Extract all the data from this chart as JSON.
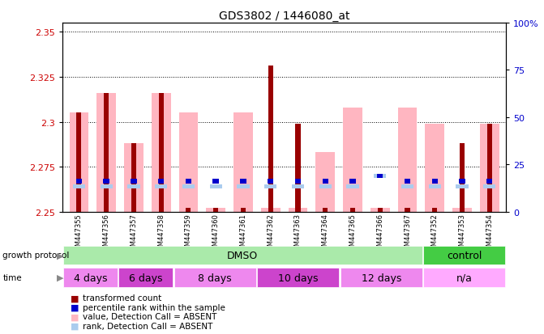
{
  "title": "GDS3802 / 1446080_at",
  "samples": [
    "GSM447355",
    "GSM447356",
    "GSM447357",
    "GSM447358",
    "GSM447359",
    "GSM447360",
    "GSM447361",
    "GSM447362",
    "GSM447363",
    "GSM447364",
    "GSM447365",
    "GSM447366",
    "GSM447367",
    "GSM447352",
    "GSM447353",
    "GSM447354"
  ],
  "ylim_left": [
    2.25,
    2.355
  ],
  "ylim_right": [
    0,
    100
  ],
  "yticks_left": [
    2.25,
    2.275,
    2.3,
    2.325,
    2.35
  ],
  "ytick_labels_left": [
    "2.25",
    "2.275",
    "2.3",
    "2.325",
    "2.35"
  ],
  "yticks_right": [
    0,
    25,
    50,
    75,
    100
  ],
  "ytick_labels_right": [
    "0",
    "25",
    "50",
    "75",
    "100%"
  ],
  "red_bar_top": [
    2.305,
    2.316,
    2.288,
    2.316,
    2.252,
    2.252,
    2.252,
    2.331,
    2.299,
    2.252,
    2.252,
    2.252,
    2.252,
    2.252,
    2.288,
    2.299
  ],
  "pink_bar_top": [
    2.305,
    2.316,
    2.288,
    2.316,
    2.305,
    2.252,
    2.305,
    2.252,
    2.252,
    2.283,
    2.308,
    2.252,
    2.308,
    2.299,
    2.252,
    2.299
  ],
  "blue_bar_y": [
    2.267,
    2.267,
    2.267,
    2.267,
    2.267,
    2.267,
    2.267,
    2.267,
    2.267,
    2.267,
    2.267,
    2.27,
    2.267,
    2.267,
    2.267,
    2.267
  ],
  "light_blue_bar_y": [
    2.264,
    2.264,
    2.264,
    2.264,
    2.264,
    2.264,
    2.264,
    2.264,
    2.264,
    2.264,
    2.264,
    2.27,
    2.264,
    2.264,
    2.264,
    2.264
  ],
  "bar_bottom": 2.25,
  "red_color": "#990000",
  "pink_color": "#FFB6C1",
  "blue_color": "#0000CC",
  "light_blue_color": "#AACCEE",
  "groups": [
    {
      "label": "DMSO",
      "start": 0,
      "end": 13,
      "color": "#AAEAAA"
    },
    {
      "label": "control",
      "start": 13,
      "end": 16,
      "color": "#44CC44"
    }
  ],
  "time_groups": [
    {
      "label": "4 days",
      "start": 0,
      "end": 2,
      "color": "#EE88EE"
    },
    {
      "label": "6 days",
      "start": 2,
      "end": 4,
      "color": "#CC44CC"
    },
    {
      "label": "8 days",
      "start": 4,
      "end": 7,
      "color": "#EE88EE"
    },
    {
      "label": "10 days",
      "start": 7,
      "end": 10,
      "color": "#CC44CC"
    },
    {
      "label": "12 days",
      "start": 10,
      "end": 13,
      "color": "#EE88EE"
    },
    {
      "label": "n/a",
      "start": 13,
      "end": 16,
      "color": "#FFAAFF"
    }
  ],
  "tick_label_color_left": "#CC0000",
  "tick_label_color_right": "#0000CC"
}
